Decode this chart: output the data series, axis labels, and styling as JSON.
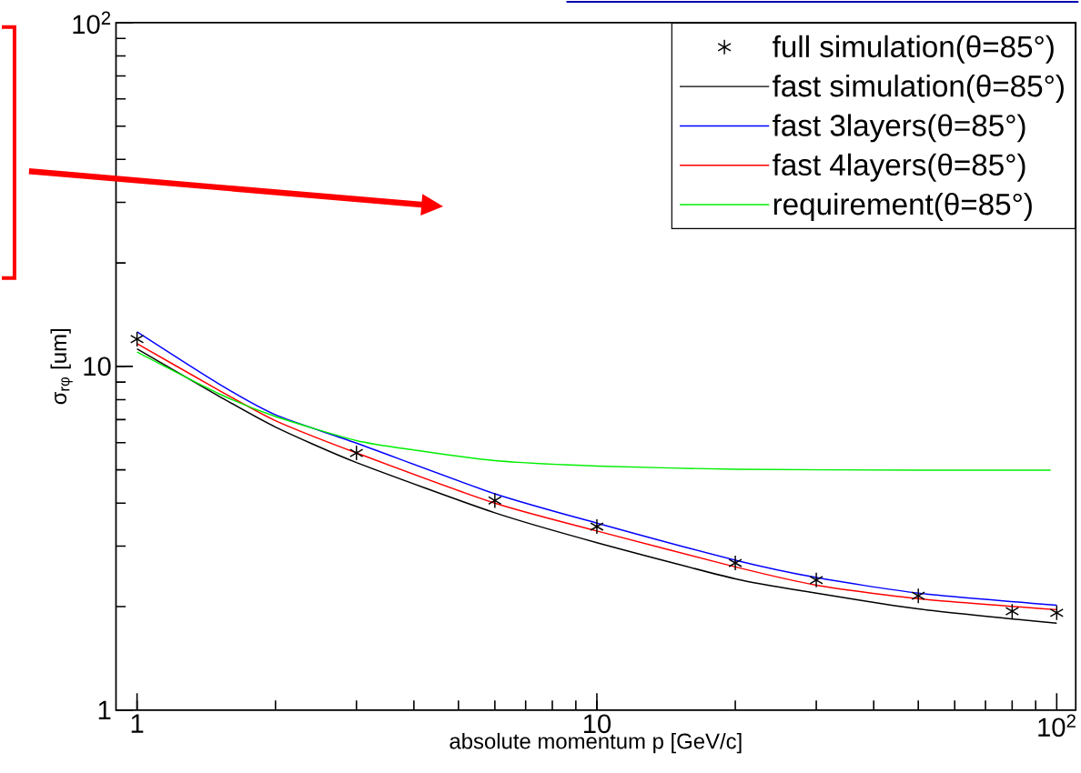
{
  "chart_data": {
    "type": "line",
    "xlabel": "absolute momentum p [GeV/c]",
    "ylabel": "σ$_{rφ}$ [um]",
    "log": "xy",
    "xlim": [
      0.9,
      110
    ],
    "ylim": [
      1,
      100
    ],
    "xticks": [
      1,
      10,
      {
        "value": 100,
        "label": "10$^{2}$"
      }
    ],
    "yticks": [
      1,
      10,
      {
        "value": 100,
        "label": "10$^{2}$"
      }
    ],
    "legend": "top right",
    "series": [
      {
        "name": "full simulation(θ=85°)",
        "type": "scatter",
        "marker": "cross",
        "color": "#000000",
        "x": [
          1,
          3,
          6,
          10,
          20,
          30,
          50,
          80,
          100
        ],
        "values": [
          12.0,
          5.6,
          4.07,
          3.42,
          2.68,
          2.39,
          2.15,
          1.94,
          1.92
        ]
      },
      {
        "name": "fast simulation(θ=85°)",
        "color": "#000000",
        "x": [
          1,
          1.5,
          2,
          3,
          6,
          10,
          20,
          30,
          50,
          100
        ],
        "values": [
          11.25,
          8.22,
          6.66,
          5.25,
          3.75,
          3.07,
          2.41,
          2.19,
          1.97,
          1.79
        ]
      },
      {
        "name": "fast 3layers(θ=85°)",
        "color": "#0000ff",
        "x": [
          1,
          1.5,
          2,
          3,
          6,
          10,
          20,
          30,
          50,
          100
        ],
        "values": [
          12.6,
          8.92,
          7.23,
          5.98,
          4.26,
          3.5,
          2.73,
          2.43,
          2.19,
          2.02
        ]
      },
      {
        "name": "fast 4layers(θ=85°)",
        "color": "#ff0000",
        "x": [
          1,
          1.5,
          2,
          3,
          6,
          10,
          20,
          30,
          50,
          100
        ],
        "values": [
          11.65,
          8.55,
          6.95,
          5.6,
          4.0,
          3.32,
          2.61,
          2.31,
          2.11,
          1.96
        ]
      },
      {
        "name": "requirement(θ=85°)",
        "color": "#00ee00",
        "x": [
          1,
          1.5,
          2,
          3,
          4,
          6,
          10,
          20,
          50,
          97
        ],
        "values": [
          11.0,
          8.35,
          7.15,
          6.08,
          5.71,
          5.32,
          5.13,
          5.02,
          4.99,
          4.99
        ]
      }
    ]
  }
}
